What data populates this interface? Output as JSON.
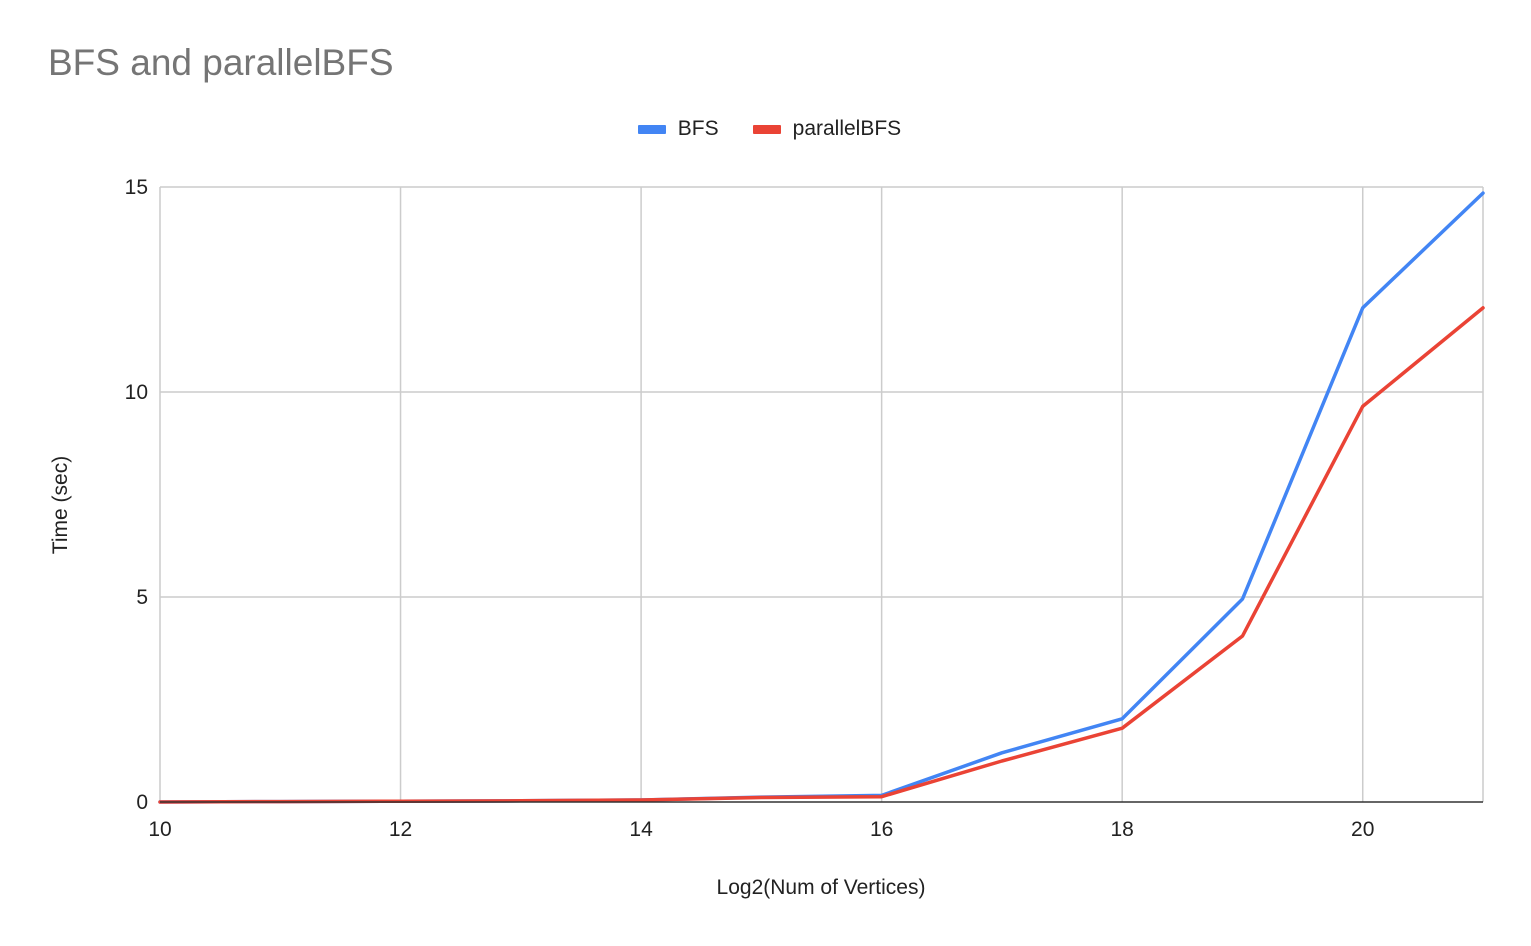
{
  "chart_data": {
    "type": "line",
    "title": "BFS and parallelBFS",
    "xlabel": "Log2(Num of Vertices)",
    "ylabel": "Time (sec)",
    "xlim": [
      10,
      21
    ],
    "ylim": [
      0,
      15
    ],
    "x_ticks": [
      10,
      12,
      14,
      16,
      18,
      20
    ],
    "y_ticks": [
      0,
      5,
      10,
      15
    ],
    "grid": true,
    "legend_position": "top-center",
    "x": [
      10,
      11,
      12,
      13,
      14,
      15,
      16,
      17,
      18,
      19,
      20,
      21
    ],
    "series": [
      {
        "name": "BFS",
        "color": "#4285f4",
        "values": [
          0.0,
          0.01,
          0.02,
          0.03,
          0.05,
          0.12,
          0.16,
          1.2,
          2.03,
          4.95,
          12.05,
          14.85
        ]
      },
      {
        "name": "parallelBFS",
        "color": "#ea4335",
        "values": [
          0.0,
          0.01,
          0.02,
          0.03,
          0.05,
          0.11,
          0.13,
          1.0,
          1.8,
          4.05,
          9.65,
          12.05
        ]
      }
    ]
  }
}
